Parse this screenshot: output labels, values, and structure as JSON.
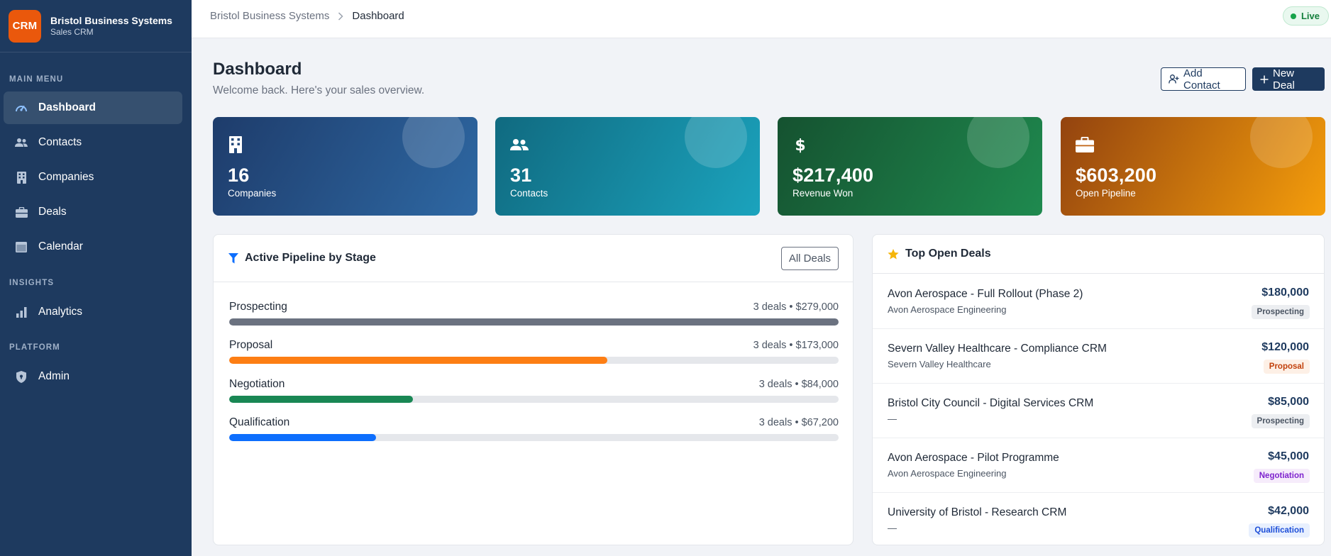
{
  "brand": {
    "logo": "CRM",
    "name": "Bristol Business Systems",
    "subtitle": "Sales CRM",
    "logo_color": "#ea580c"
  },
  "sidebar": {
    "sections": [
      {
        "label": "MAIN MENU",
        "items": [
          {
            "label": "Dashboard",
            "icon": "gauge-icon",
            "active": true
          },
          {
            "label": "Contacts",
            "icon": "users-icon"
          },
          {
            "label": "Companies",
            "icon": "building-icon"
          },
          {
            "label": "Deals",
            "icon": "briefcase-icon"
          },
          {
            "label": "Calendar",
            "icon": "calendar-icon"
          }
        ]
      },
      {
        "label": "INSIGHTS",
        "items": [
          {
            "label": "Analytics",
            "icon": "bar-chart-icon"
          }
        ]
      },
      {
        "label": "PLATFORM",
        "items": [
          {
            "label": "Admin",
            "icon": "shield-icon"
          }
        ]
      }
    ]
  },
  "header": {
    "breadcrumb": [
      "Bristol Business Systems",
      "Dashboard"
    ],
    "status": "Live"
  },
  "page": {
    "title": "Dashboard",
    "subtitle": "Welcome back. Here's your sales overview.",
    "add_contact_label": "Add Contact",
    "new_deal_label": "New Deal"
  },
  "stats": [
    {
      "value": "16",
      "label": "Companies",
      "icon": "building-icon"
    },
    {
      "value": "31",
      "label": "Contacts",
      "icon": "users-icon"
    },
    {
      "value": "$217,400",
      "label": "Revenue Won",
      "icon": "dollar-icon"
    },
    {
      "value": "$603,200",
      "label": "Open Pipeline",
      "icon": "briefcase-icon"
    }
  ],
  "pipeline": {
    "title": "Active Pipeline by Stage",
    "all_deals_label": "All Deals",
    "stages": [
      {
        "name": "Prospecting",
        "meta": "3 deals • $279,000",
        "fraction": 1.0,
        "color": "#6b7280"
      },
      {
        "name": "Proposal",
        "meta": "3 deals • $173,000",
        "fraction": 0.62,
        "color": "#fd7e14"
      },
      {
        "name": "Negotiation",
        "meta": "3 deals • $84,000",
        "fraction": 0.301,
        "color": "#198754"
      },
      {
        "name": "Qualification",
        "meta": "3 deals • $67,200",
        "fraction": 0.241,
        "color": "#0d6efd"
      }
    ]
  },
  "top_deals": {
    "title": "Top Open Deals",
    "rows": [
      {
        "name": "Avon Aerospace - Full Rollout (Phase 2)",
        "company": "Avon Aerospace Engineering",
        "amount": "$180,000",
        "stage": "Prospecting",
        "badge_bg": "#eceef1",
        "badge_fg": "#4b5563"
      },
      {
        "name": "Severn Valley Healthcare - Compliance CRM",
        "company": "Severn Valley Healthcare",
        "amount": "$120,000",
        "stage": "Proposal",
        "badge_bg": "#fdf0e6",
        "badge_fg": "#c2410c"
      },
      {
        "name": "Bristol City Council - Digital Services CRM",
        "company": "—",
        "amount": "$85,000",
        "stage": "Prospecting",
        "badge_bg": "#eceef1",
        "badge_fg": "#4b5563"
      },
      {
        "name": "Avon Aerospace - Pilot Programme",
        "company": "Avon Aerospace Engineering",
        "amount": "$45,000",
        "stage": "Negotiation",
        "badge_bg": "#f6ecfb",
        "badge_fg": "#7e22ce"
      },
      {
        "name": "University of Bristol - Research CRM",
        "company": "—",
        "amount": "$42,000",
        "stage": "Qualification",
        "badge_bg": "#e8f0fe",
        "badge_fg": "#1d4ed8"
      }
    ]
  }
}
